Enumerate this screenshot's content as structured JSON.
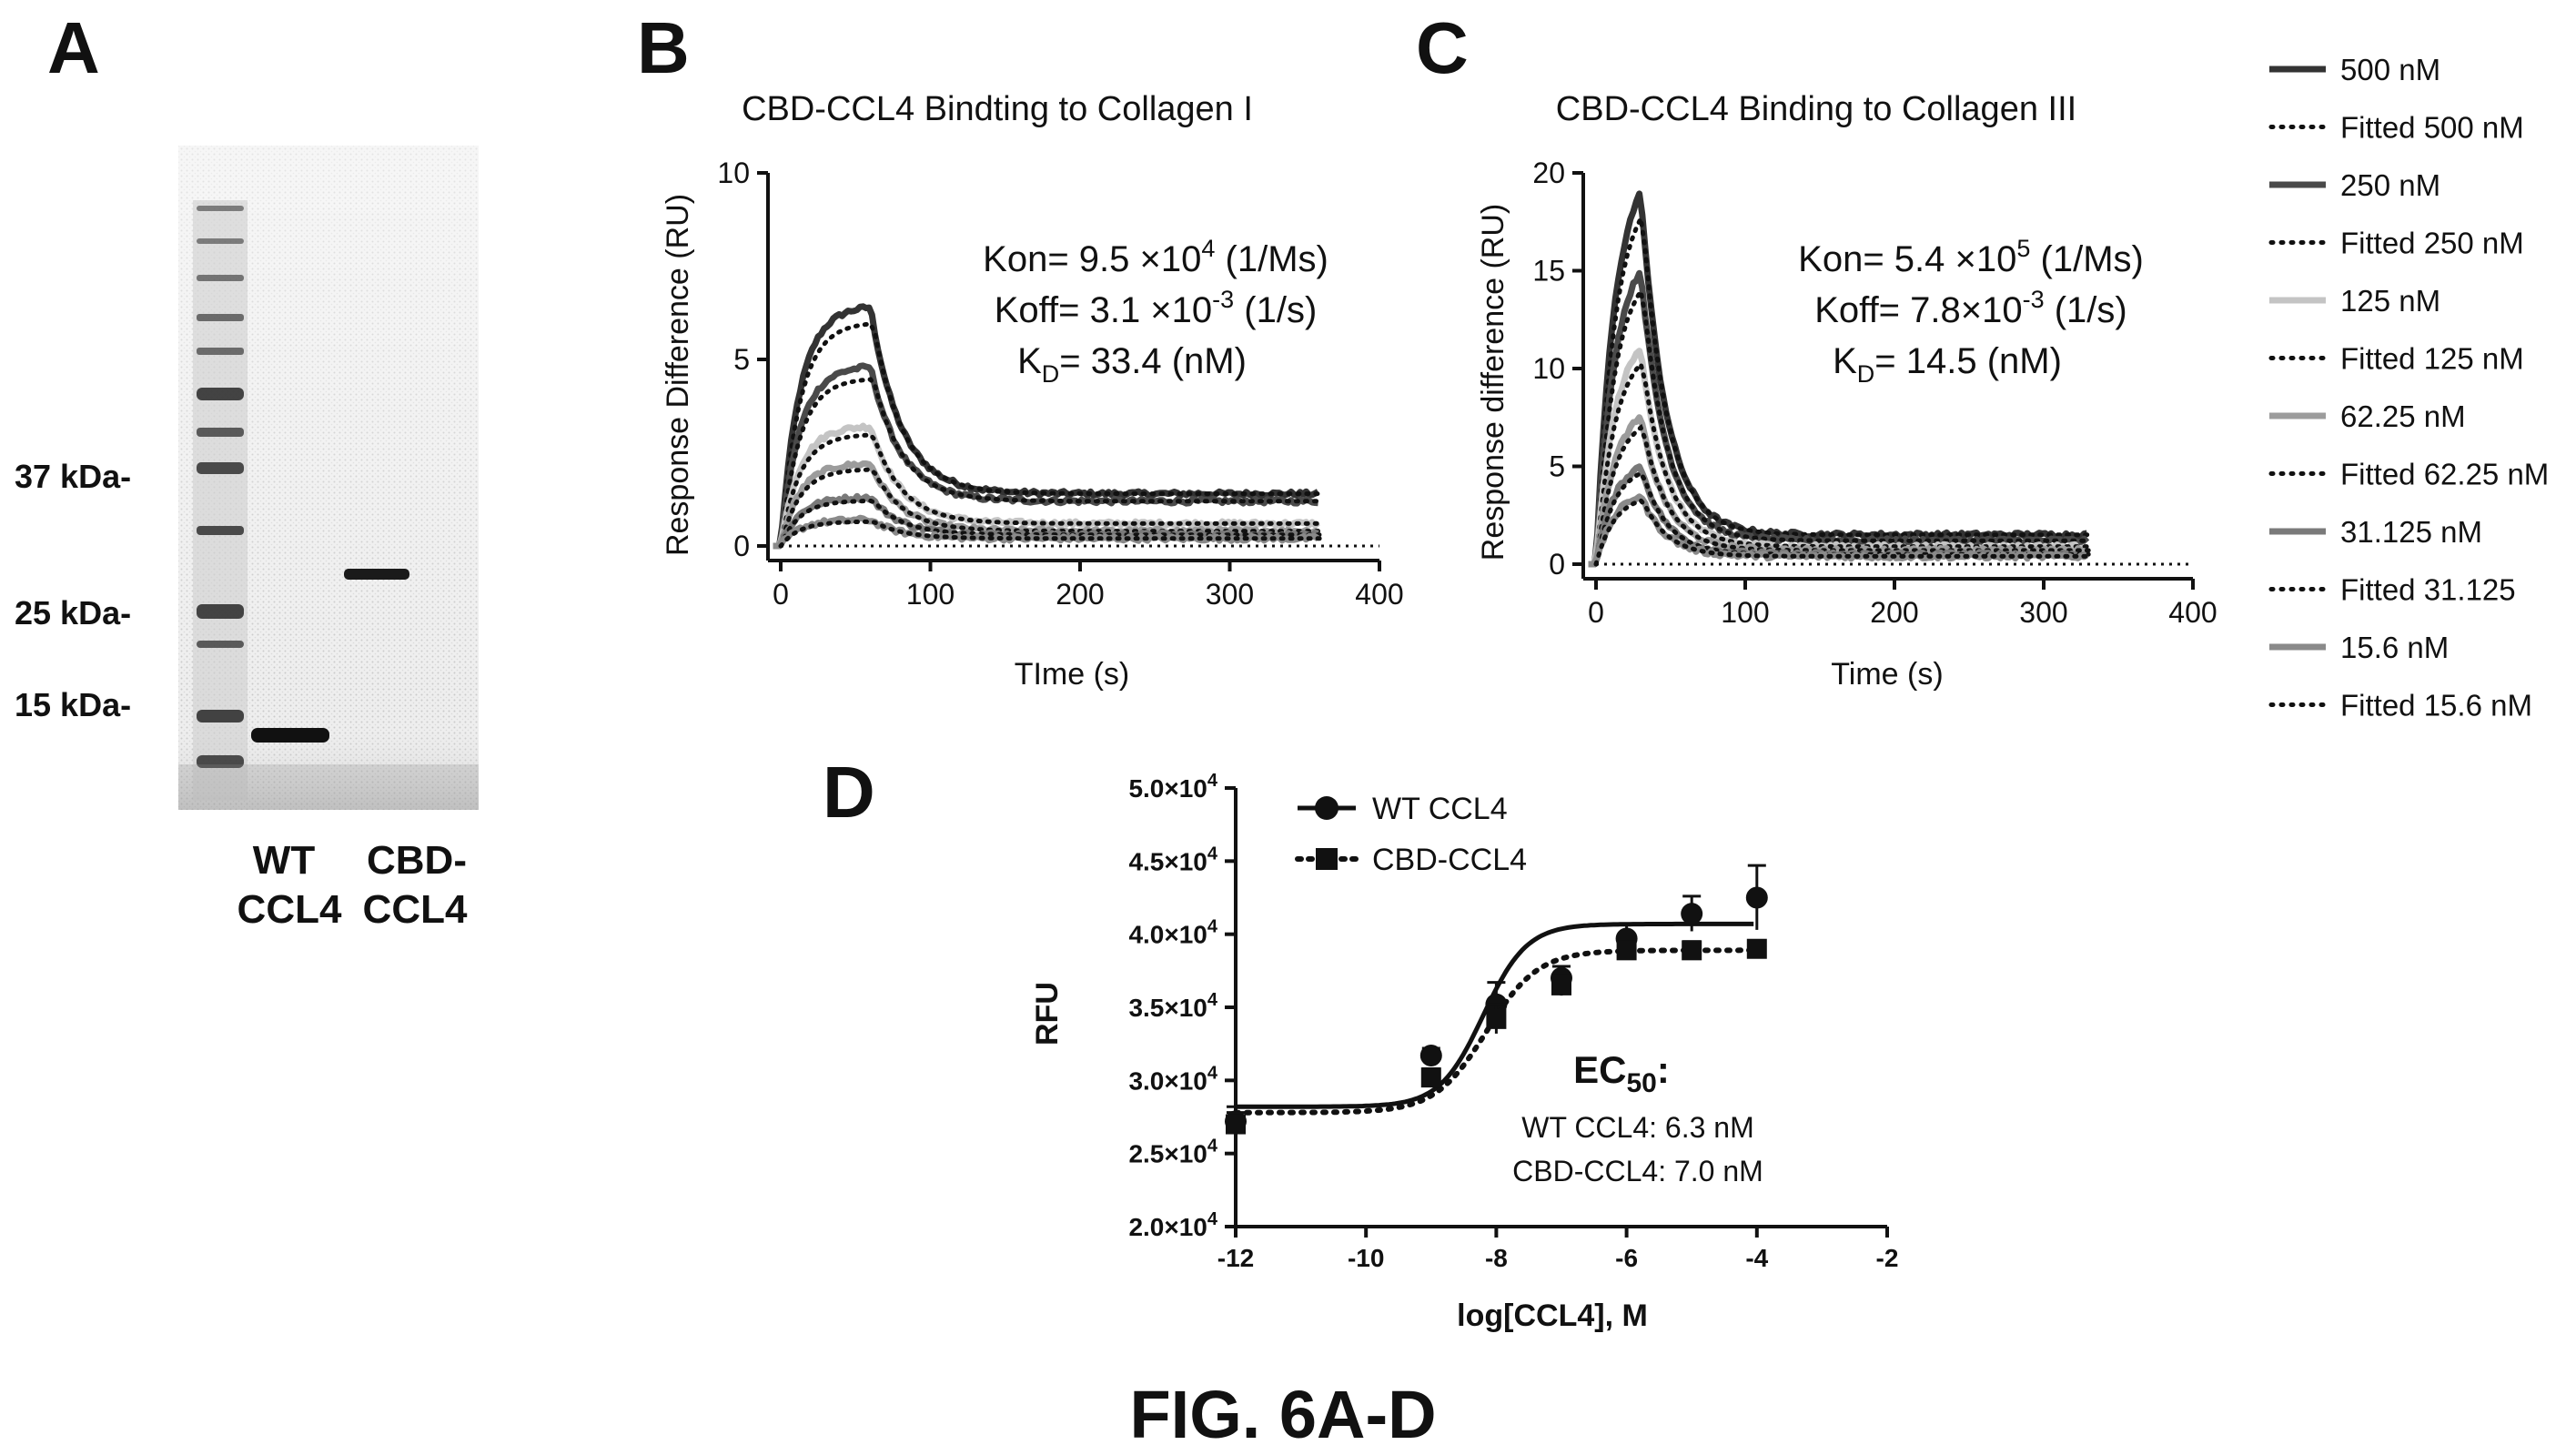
{
  "figure": {
    "caption": "FIG. 6A-D"
  },
  "panelA": {
    "letter": "A",
    "markers": [
      "37 kDa-",
      "25 kDa-",
      "15 kDa-"
    ],
    "lanes": [
      {
        "line1": "WT",
        "line2": "CCL4"
      },
      {
        "line1": "CBD-",
        "line2": "CCL4"
      }
    ]
  },
  "panelB": {
    "letter": "B",
    "title": "CBD-CCL4 Bindting to Collagen I",
    "ylabel": "Response  Difference (RU)",
    "xlabel": "TIme (s)",
    "kon": {
      "pre": "Kon= 9.5 ×10",
      "sup": "4",
      "post": " (1/Ms)"
    },
    "koff": {
      "pre": "Koff= 3.1 ×10",
      "sup": "-3",
      "post": " (1/s)"
    },
    "kd": {
      "pre": "K",
      "sub": "D",
      "post": "= 33.4 (nM)"
    }
  },
  "panelC": {
    "letter": "C",
    "title": "CBD-CCL4 Binding to Collagen III",
    "ylabel": "Response  difference (RU)",
    "xlabel": "Time (s)",
    "kon": {
      "pre": "Kon= 5.4 ×10",
      "sup": "5",
      "post": " (1/Ms)"
    },
    "koff": {
      "pre": "Koff= 7.8×10",
      "sup": "-3",
      "post": " (1/s)"
    },
    "kd": {
      "pre": "K",
      "sub": "D",
      "post": "= 14.5 (nM)"
    }
  },
  "legendBC": [
    {
      "label": "500 nM",
      "style": "solid",
      "color": "#333333"
    },
    {
      "label": "Fitted 500 nM",
      "style": "dotted",
      "color": "#111111"
    },
    {
      "label": "250 nM",
      "style": "solid",
      "color": "#4a4a4a"
    },
    {
      "label": "Fitted 250 nM",
      "style": "dotted",
      "color": "#111111"
    },
    {
      "label": "125 nM",
      "style": "solid",
      "color": "#c4c4c4"
    },
    {
      "label": "Fitted 125 nM",
      "style": "dotted",
      "color": "#111111"
    },
    {
      "label": "62.25 nM",
      "style": "solid",
      "color": "#9c9c9c"
    },
    {
      "label": "Fitted 62.25 nM",
      "style": "dotted",
      "color": "#111111"
    },
    {
      "label": "31.125 nM",
      "style": "solid",
      "color": "#7a7a7a"
    },
    {
      "label": "Fitted 31.125",
      "style": "dotted",
      "color": "#111111"
    },
    {
      "label": "15.6 nM",
      "style": "solid",
      "color": "#8a8a8a"
    },
    {
      "label": "Fitted 15.6 nM",
      "style": "dotted",
      "color": "#111111"
    }
  ],
  "panelD": {
    "letter": "D",
    "ylabel": "RFU",
    "xlabel": "log[CCL4], M",
    "ytick_labels": [
      {
        "mant": "2.0×10",
        "exp": "4"
      },
      {
        "mant": "2.5×10",
        "exp": "4"
      },
      {
        "mant": "3.0×10",
        "exp": "4"
      },
      {
        "mant": "3.5×10",
        "exp": "4"
      },
      {
        "mant": "4.0×10",
        "exp": "4"
      },
      {
        "mant": "4.5×10",
        "exp": "4"
      },
      {
        "mant": "5.0×10",
        "exp": "4"
      }
    ],
    "series_labels": [
      "WT CCL4",
      "CBD-CCL4"
    ],
    "ec50_title": {
      "pre": "EC",
      "sub": "50",
      "post": ":"
    },
    "ec50_lines": [
      "WT CCL4: 6.3 nM",
      "CBD-CCL4: 7.0 nM"
    ]
  },
  "chart_data": [
    {
      "id": "B",
      "type": "line",
      "title": "CBD-CCL4 Bindting to Collagen I",
      "xlabel": "TIme (s)",
      "ylabel": "Response  Difference (RU)",
      "xlim": [
        0,
        400
      ],
      "ylim": [
        0,
        10
      ],
      "xticks": [
        0,
        100,
        200,
        300,
        400
      ],
      "yticks": [
        0,
        5,
        10
      ],
      "injection_end": 60,
      "data_end": 360,
      "series": [
        {
          "name": "500 nM",
          "peak": 6.4,
          "tail": 1.4
        },
        {
          "name": "250 nM",
          "peak": 4.8,
          "tail": 1.2
        },
        {
          "name": "125 nM",
          "peak": 3.2,
          "tail": 0.6
        },
        {
          "name": "62.25 nM",
          "peak": 2.2,
          "tail": 0.4
        },
        {
          "name": "31.125 nM",
          "peak": 1.3,
          "tail": 0.3
        },
        {
          "name": "15.6 nM",
          "peak": 0.7,
          "tail": 0.2
        }
      ]
    },
    {
      "id": "C",
      "type": "line",
      "title": "CBD-CCL4 Binding to Collagen III",
      "xlabel": "Time (s)",
      "ylabel": "Response  difference (RU)",
      "xlim": [
        0,
        400
      ],
      "ylim": [
        0,
        20
      ],
      "xticks": [
        0,
        100,
        200,
        300,
        400
      ],
      "yticks": [
        0,
        5,
        10,
        15,
        20
      ],
      "injection_end": 30,
      "data_end": 330,
      "series": [
        {
          "name": "500 nM",
          "peak": 19.0,
          "tail": 1.5
        },
        {
          "name": "250 nM",
          "peak": 15.0,
          "tail": 1.2
        },
        {
          "name": "125 nM",
          "peak": 11.0,
          "tail": 0.9
        },
        {
          "name": "62.25 nM",
          "peak": 7.5,
          "tail": 0.7
        },
        {
          "name": "31.125 nM",
          "peak": 5.0,
          "tail": 0.5
        },
        {
          "name": "15.6 nM",
          "peak": 3.5,
          "tail": 0.4
        }
      ]
    },
    {
      "id": "D",
      "type": "scatter",
      "xlabel": "log[CCL4], M",
      "ylabel": "RFU",
      "xlim": [
        -12,
        -2
      ],
      "ylim": [
        20000,
        50000
      ],
      "xticks": [
        -12,
        -10,
        -8,
        -6,
        -4,
        -2
      ],
      "yticks": [
        20000,
        25000,
        30000,
        35000,
        40000,
        45000,
        50000
      ],
      "series": [
        {
          "name": "WT CCL4",
          "marker": "circle",
          "fit": "solid",
          "x": [
            -12,
            -9,
            -8,
            -7,
            -6,
            -5,
            -4
          ],
          "y": [
            27200,
            31700,
            35200,
            37000,
            39700,
            41400,
            42500
          ],
          "err": [
            1000,
            500,
            1500,
            800,
            1000,
            1200,
            2200
          ],
          "fit_params": {
            "bottom": 28200,
            "top": 40700,
            "logEC50": -8.2,
            "hill": 1.3
          }
        },
        {
          "name": "CBD-CCL4",
          "marker": "square",
          "fit": "dotted",
          "x": [
            -12,
            -9,
            -8,
            -7,
            -6,
            -5,
            -4
          ],
          "y": [
            27000,
            30200,
            34200,
            36500,
            38900,
            38900,
            39000
          ],
          "err": [
            800,
            600,
            1000,
            700,
            600,
            600,
            500
          ],
          "fit_params": {
            "bottom": 27800,
            "top": 38900,
            "logEC50": -8.15,
            "hill": 1.1
          }
        }
      ]
    }
  ]
}
